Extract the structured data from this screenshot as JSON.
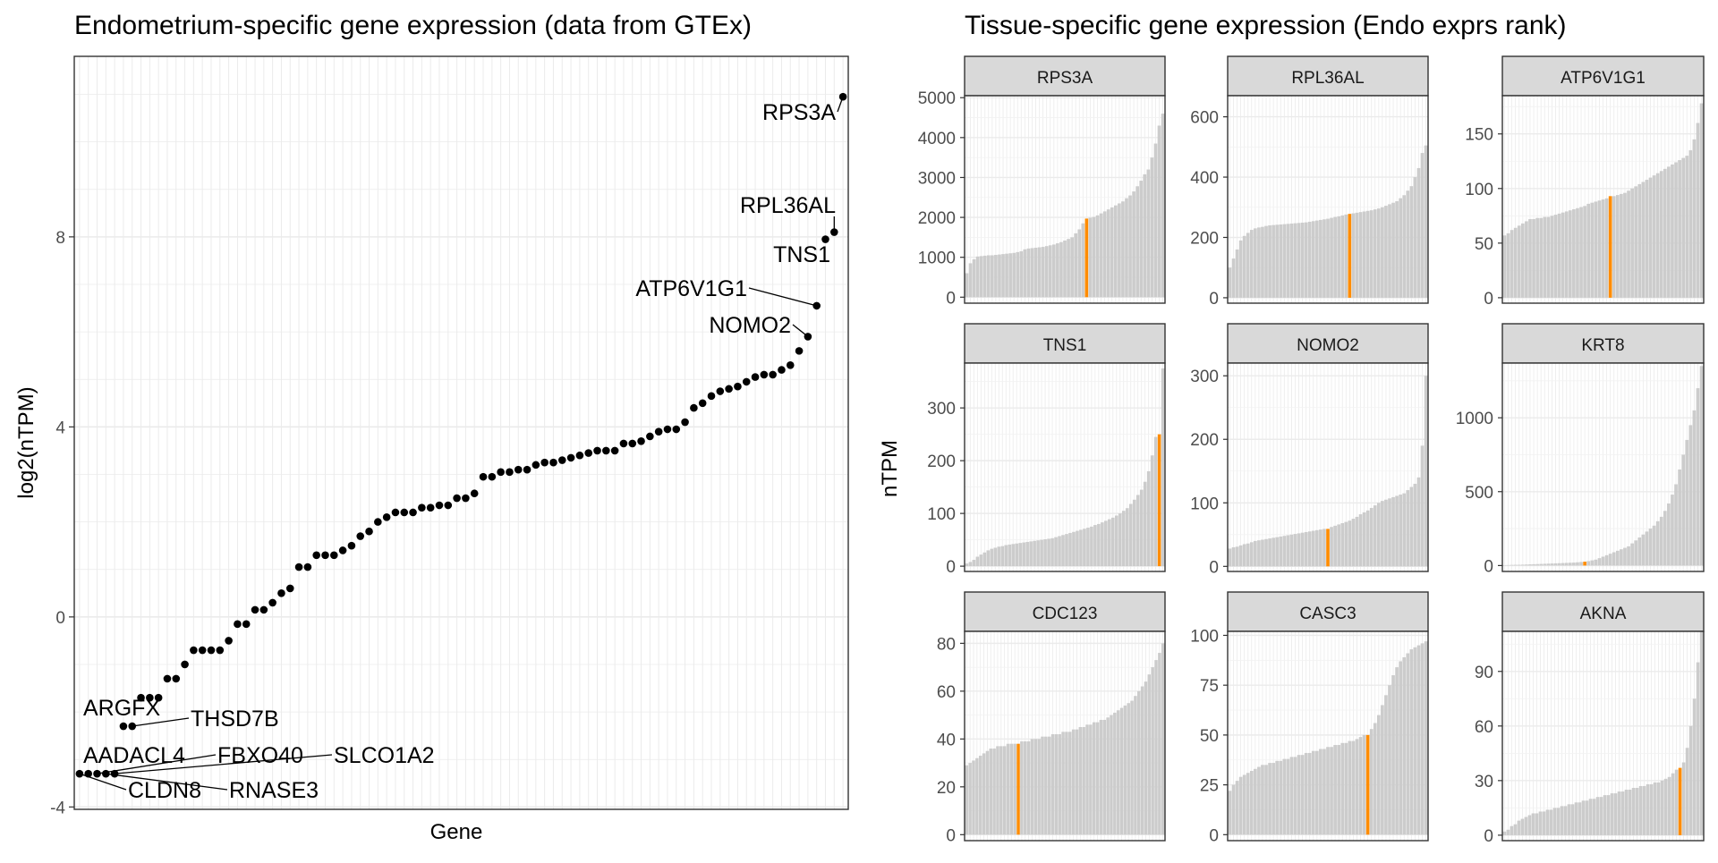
{
  "left": {
    "title": "Endometrium-specific gene expression (data from GTEx)",
    "xlabel": "Gene",
    "ylabel": "log2(nTPM)"
  },
  "right": {
    "title": "Tissue-specific gene expression (Endo exprs rank)",
    "ylabel": "nTPM"
  },
  "colors": {
    "highlight": "#ff8c00",
    "bar": "#cccccc",
    "point": "#000000",
    "strip": "#d9d9d9"
  },
  "chart_data": [
    {
      "type": "scatter",
      "title": "Endometrium-specific gene expression (data from GTEx)",
      "xlabel": "Gene",
      "ylabel": "log2(nTPM)",
      "ylim": [
        -4.05,
        11.8
      ],
      "yticks": [
        -4,
        0,
        4,
        8
      ],
      "grid": true,
      "values": [
        -3.3,
        -3.3,
        -3.3,
        -3.3,
        -3.3,
        -2.3,
        -2.3,
        -1.7,
        -1.7,
        -1.7,
        -1.3,
        -1.3,
        -1.0,
        -0.7,
        -0.7,
        -0.7,
        -0.7,
        -0.5,
        -0.15,
        -0.15,
        0.15,
        0.15,
        0.3,
        0.5,
        0.6,
        1.05,
        1.05,
        1.3,
        1.3,
        1.3,
        1.4,
        1.5,
        1.7,
        1.8,
        2.0,
        2.1,
        2.2,
        2.2,
        2.2,
        2.3,
        2.3,
        2.35,
        2.35,
        2.5,
        2.5,
        2.6,
        2.95,
        2.95,
        3.05,
        3.05,
        3.1,
        3.1,
        3.2,
        3.25,
        3.25,
        3.3,
        3.35,
        3.4,
        3.45,
        3.5,
        3.5,
        3.5,
        3.65,
        3.65,
        3.7,
        3.8,
        3.9,
        3.95,
        3.95,
        4.1,
        4.4,
        4.5,
        4.65,
        4.75,
        4.8,
        4.85,
        4.95,
        5.05,
        5.1,
        5.1,
        5.2,
        5.3,
        5.6,
        5.9,
        6.55,
        7.95,
        8.1,
        10.95
      ],
      "labels": [
        {
          "text": "ARGFX",
          "index": 5
        },
        {
          "text": "THSD7B",
          "index": 6
        },
        {
          "text": "AADACL4",
          "index": 1
        },
        {
          "text": "FBXO40",
          "index": 2
        },
        {
          "text": "SLCO1A2",
          "index": 4
        },
        {
          "text": "CLDN8",
          "index": 0
        },
        {
          "text": "RNASE3",
          "index": 3
        },
        {
          "text": "NOMO2",
          "index": 83
        },
        {
          "text": "ATP6V1G1",
          "index": 84
        },
        {
          "text": "TNS1",
          "index": 85
        },
        {
          "text": "RPL36AL",
          "index": 86
        },
        {
          "text": "RPS3A",
          "index": 87
        }
      ]
    },
    {
      "type": "bar",
      "facets": [
        {
          "name": "RPS3A",
          "ylim": [
            -150,
            5050
          ],
          "yticks": [
            0,
            1000,
            2000,
            3000,
            4000,
            5000
          ],
          "highlight_index": 33,
          "values": [
            600,
            850,
            950,
            1020,
            1030,
            1040,
            1050,
            1050,
            1060,
            1070,
            1080,
            1090,
            1100,
            1110,
            1130,
            1150,
            1200,
            1220,
            1230,
            1240,
            1250,
            1260,
            1280,
            1300,
            1320,
            1350,
            1380,
            1420,
            1460,
            1500,
            1600,
            1700,
            1850,
            1970,
            1990,
            2010,
            2050,
            2100,
            2150,
            2200,
            2250,
            2300,
            2350,
            2400,
            2480,
            2550,
            2650,
            2780,
            2920,
            3080,
            3200,
            3500,
            3850,
            4300,
            4600
          ]
        },
        {
          "name": "RPL36AL",
          "ylim": [
            -18,
            670
          ],
          "yticks": [
            0,
            200,
            400,
            600
          ],
          "highlight_index": 33,
          "values": [
            100,
            130,
            160,
            190,
            205,
            215,
            225,
            230,
            233,
            235,
            238,
            240,
            241,
            242,
            243,
            244,
            245,
            246,
            247,
            248,
            249,
            250,
            252,
            254,
            256,
            258,
            260,
            262,
            265,
            268,
            270,
            273,
            276,
            278,
            280,
            282,
            284,
            286,
            288,
            290,
            293,
            296,
            300,
            305,
            310,
            315,
            320,
            330,
            340,
            355,
            370,
            400,
            430,
            480,
            505
          ]
        },
        {
          "name": "ATP6V1G1",
          "ylim": [
            -5,
            185
          ],
          "yticks": [
            0,
            50,
            100,
            150
          ],
          "highlight_index": 29,
          "values": [
            57,
            59,
            62,
            64,
            66,
            68,
            70,
            72,
            72,
            73,
            73,
            74,
            74,
            75,
            76,
            77,
            78,
            79,
            80,
            81,
            82,
            83,
            84,
            86,
            87,
            88,
            89,
            90,
            91,
            93,
            93,
            94,
            95,
            96,
            98,
            100,
            102,
            104,
            106,
            108,
            110,
            112,
            114,
            116,
            118,
            120,
            122,
            124,
            126,
            128,
            130,
            135,
            145,
            160,
            178
          ]
        },
        {
          "name": "TNS1",
          "ylim": [
            -10,
            385
          ],
          "yticks": [
            0,
            100,
            200,
            300
          ],
          "highlight_index": 54,
          "values": [
            5,
            8,
            12,
            18,
            22,
            26,
            30,
            33,
            35,
            37,
            38,
            40,
            41,
            42,
            43,
            44,
            45,
            46,
            47,
            48,
            49,
            50,
            51,
            52,
            53,
            55,
            57,
            59,
            61,
            63,
            65,
            67,
            69,
            71,
            73,
            75,
            78,
            80,
            83,
            86,
            89,
            92,
            96,
            100,
            105,
            110,
            118,
            126,
            135,
            145,
            160,
            180,
            210,
            245,
            250,
            375
          ]
        },
        {
          "name": "NOMO2",
          "ylim": [
            -8,
            320
          ],
          "yticks": [
            0,
            100,
            200,
            300
          ],
          "highlight_index": 27,
          "values": [
            28,
            30,
            31,
            33,
            35,
            36,
            38,
            40,
            41,
            42,
            43,
            44,
            45,
            46,
            47,
            48,
            49,
            50,
            51,
            52,
            53,
            54,
            55,
            56,
            57,
            58,
            59,
            59,
            62,
            64,
            66,
            68,
            70,
            72,
            75,
            78,
            82,
            85,
            88,
            92,
            96,
            100,
            103,
            105,
            107,
            109,
            111,
            113,
            115,
            120,
            125,
            130,
            140,
            190,
            300
          ]
        },
        {
          "name": "KRT8",
          "ylim": [
            -40,
            1370
          ],
          "yticks": [
            0,
            500,
            1000
          ],
          "highlight_index": 22,
          "values": [
            2,
            3,
            4,
            5,
            5,
            6,
            7,
            8,
            9,
            10,
            11,
            12,
            13,
            14,
            15,
            16,
            17,
            18,
            19,
            20,
            22,
            24,
            26,
            30,
            35,
            40,
            50,
            60,
            70,
            80,
            90,
            100,
            110,
            120,
            130,
            150,
            170,
            190,
            210,
            230,
            250,
            270,
            300,
            330,
            370,
            420,
            480,
            550,
            650,
            750,
            850,
            950,
            1050,
            1200,
            1350
          ]
        },
        {
          "name": "CDC123",
          "ylim": [
            -2.5,
            85
          ],
          "yticks": [
            0,
            20,
            40,
            60,
            80
          ],
          "highlight_index": 15,
          "values": [
            29,
            30,
            31,
            32,
            33,
            34,
            35,
            36,
            36,
            37,
            37,
            37,
            38,
            38,
            38,
            38,
            39,
            39,
            39,
            40,
            40,
            40,
            41,
            41,
            41,
            42,
            42,
            42,
            43,
            43,
            43,
            44,
            44,
            45,
            45,
            46,
            46,
            47,
            47,
            48,
            48,
            49,
            50,
            51,
            52,
            53,
            54,
            55,
            56,
            58,
            60,
            62,
            64,
            67,
            70,
            73,
            76,
            80
          ]
        },
        {
          "name": "CASC3",
          "ylim": [
            -3,
            102
          ],
          "yticks": [
            0,
            25,
            50,
            75,
            100
          ],
          "highlight_index": 38,
          "values": [
            22,
            25,
            27,
            29,
            30,
            31,
            32,
            33,
            34,
            35,
            35,
            36,
            36,
            37,
            37,
            38,
            38,
            39,
            39,
            40,
            40,
            41,
            41,
            42,
            42,
            43,
            43,
            44,
            44,
            45,
            45,
            46,
            46,
            47,
            47,
            48,
            49,
            50,
            50,
            53,
            56,
            60,
            65,
            70,
            75,
            80,
            84,
            87,
            89,
            91,
            93,
            94,
            95,
            96,
            97
          ]
        },
        {
          "name": "AKNA",
          "ylim": [
            -3,
            112
          ],
          "yticks": [
            0,
            30,
            60,
            90
          ],
          "highlight_index": 49,
          "values": [
            2,
            3,
            5,
            6,
            8,
            9,
            10,
            11,
            12,
            12,
            13,
            13,
            14,
            14,
            15,
            15,
            16,
            16,
            17,
            17,
            18,
            18,
            19,
            19,
            20,
            20,
            21,
            21,
            22,
            22,
            23,
            23,
            24,
            24,
            25,
            25,
            26,
            26,
            27,
            27,
            28,
            28,
            29,
            29,
            30,
            31,
            32,
            34,
            36,
            37,
            40,
            48,
            60,
            75,
            95,
            112
          ]
        }
      ]
    }
  ]
}
